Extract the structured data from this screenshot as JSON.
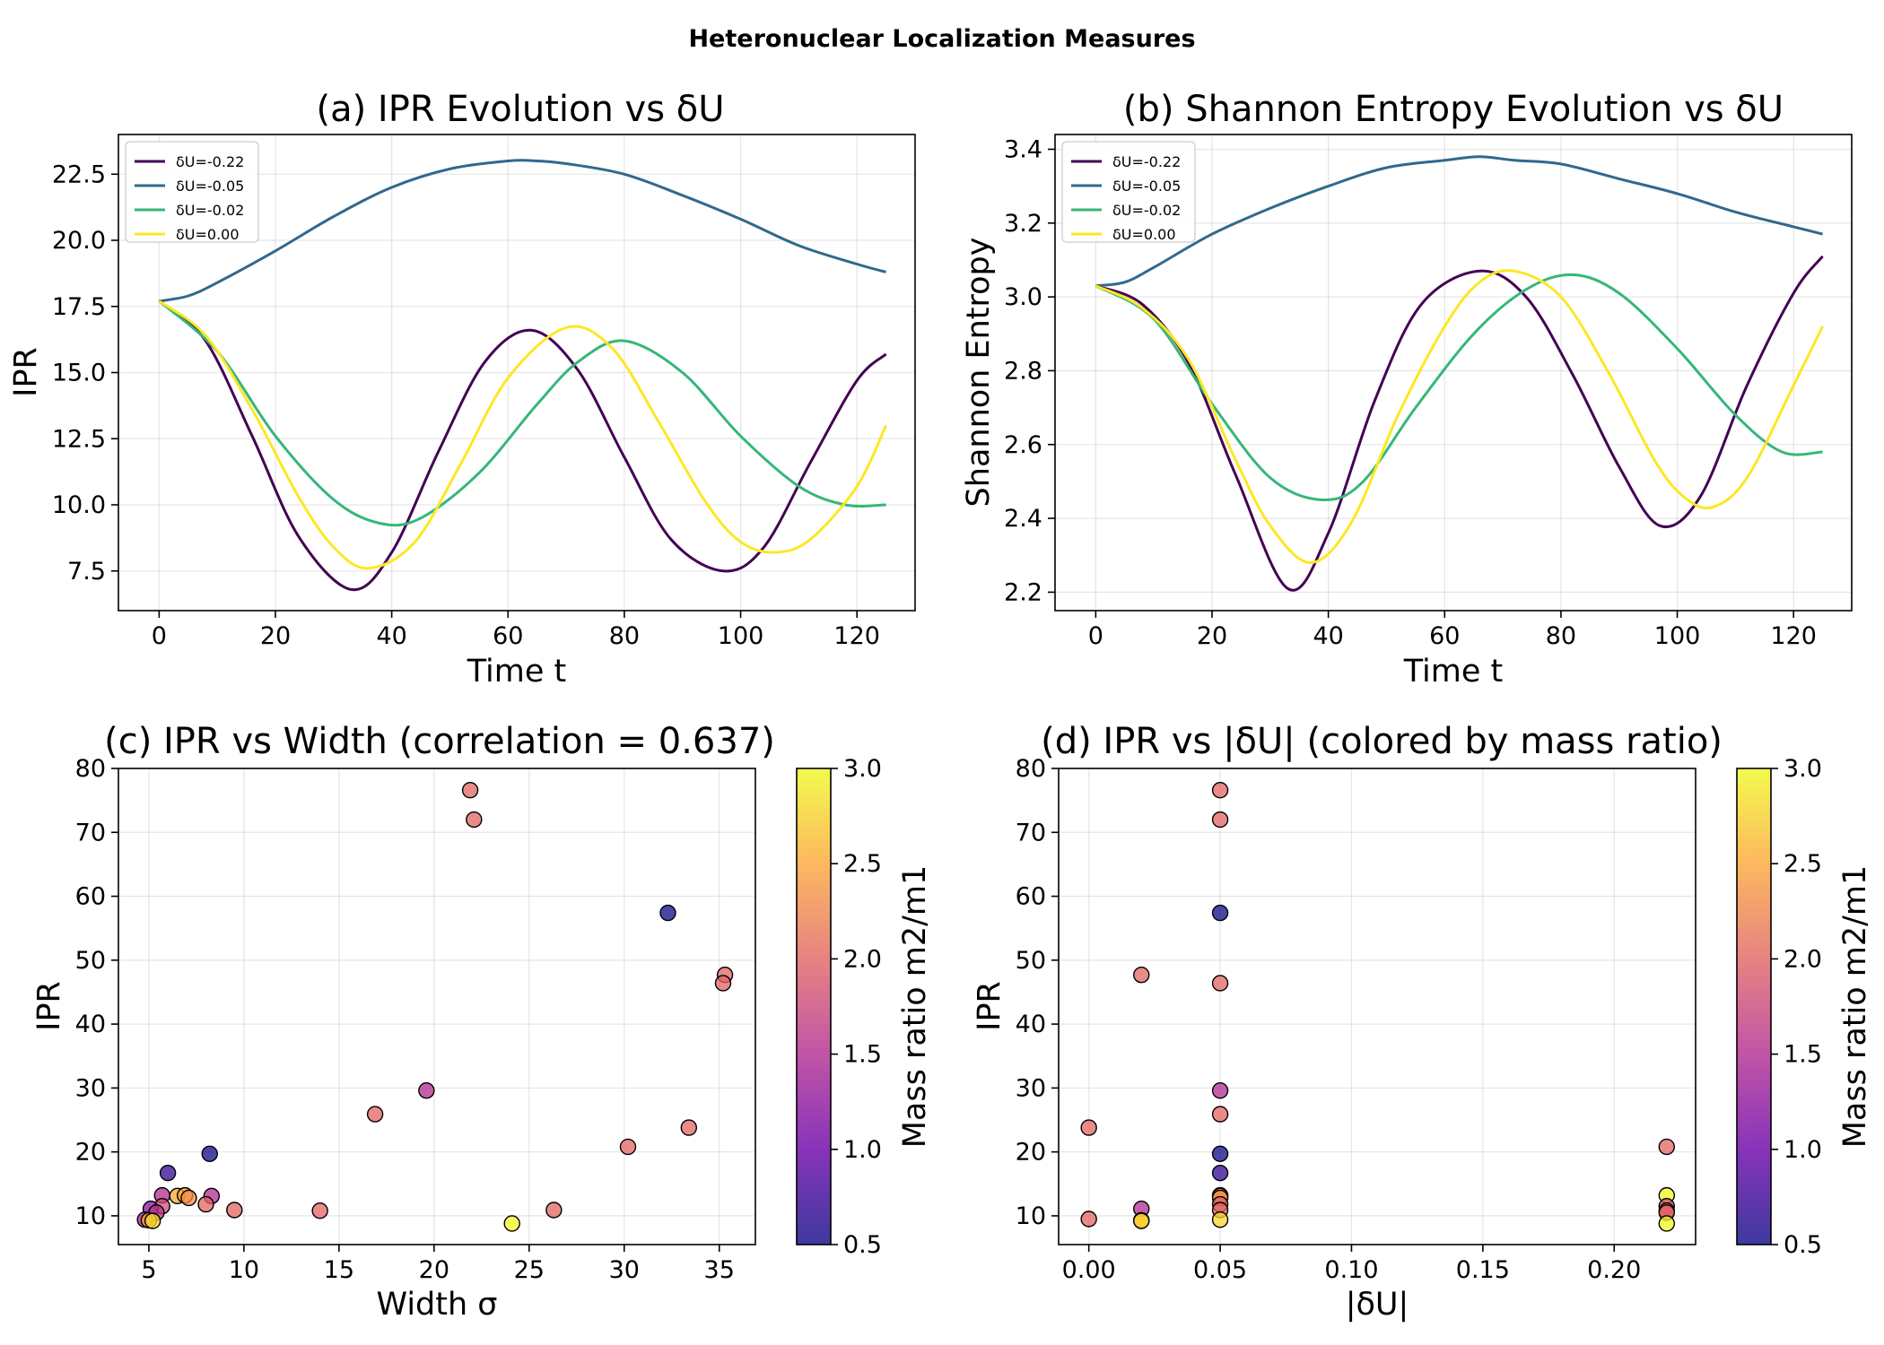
{
  "figure": {
    "suptitle": "Heteronuclear Localization Measures"
  },
  "colors": {
    "series": [
      "#440154",
      "#31688e",
      "#35b779",
      "#fde725"
    ],
    "colormap_stops": [
      "#0d0887",
      "#6a00a8",
      "#b12a90",
      "#e16462",
      "#fca636",
      "#f0f921"
    ]
  },
  "chart_data": [
    {
      "id": "a",
      "type": "line",
      "title": "(a) IPR Evolution vs δU",
      "xlabel": "Time t",
      "ylabel": "IPR",
      "xlim": [
        -7,
        130
      ],
      "ylim": [
        6,
        24
      ],
      "xticks": [
        0,
        20,
        40,
        60,
        80,
        100,
        120
      ],
      "xtick_labels": [
        "0",
        "20",
        "40",
        "60",
        "80",
        "100",
        "120"
      ],
      "yticks": [
        7.5,
        10,
        12.5,
        15,
        17.5,
        20,
        22.5
      ],
      "ytick_labels": [
        "7.5",
        "10.0",
        "12.5",
        "15.0",
        "17.5",
        "20.0",
        "22.5"
      ],
      "legend_location": "upper-left",
      "series": [
        {
          "name": "δU=-0.22",
          "x": [
            0,
            8,
            16,
            24,
            33,
            40,
            48,
            56,
            64,
            72,
            80,
            88,
            97,
            104,
            112,
            120,
            125
          ],
          "values": [
            17.7,
            16.2,
            12.6,
            8.8,
            6.8,
            8.2,
            12.0,
            15.4,
            16.6,
            15.1,
            11.8,
            8.7,
            7.5,
            8.4,
            11.6,
            14.7,
            15.7
          ]
        },
        {
          "name": "δU=-0.05",
          "x": [
            0,
            5,
            10,
            20,
            30,
            40,
            50,
            60,
            65,
            70,
            80,
            90,
            100,
            110,
            120,
            125
          ],
          "values": [
            17.7,
            17.9,
            18.4,
            19.6,
            20.9,
            22.0,
            22.7,
            23.0,
            23.0,
            22.9,
            22.5,
            21.7,
            20.8,
            19.8,
            19.1,
            18.8
          ]
        },
        {
          "name": "δU=-0.02",
          "x": [
            0,
            10,
            20,
            30,
            38,
            45,
            55,
            65,
            72,
            80,
            90,
            100,
            110,
            118,
            125
          ],
          "values": [
            17.7,
            15.8,
            12.6,
            10.2,
            9.3,
            9.5,
            11.2,
            13.8,
            15.4,
            16.2,
            15.0,
            12.6,
            10.7,
            10.0,
            10.0
          ]
        },
        {
          "name": "δU=0.00",
          "x": [
            0,
            8,
            16,
            24,
            30,
            36,
            44,
            52,
            60,
            70,
            78,
            86,
            94,
            100,
            106,
            112,
            120,
            125
          ],
          "values": [
            17.7,
            16.4,
            13.6,
            10.3,
            8.4,
            7.6,
            8.6,
            11.6,
            14.8,
            16.7,
            15.9,
            13.1,
            10.1,
            8.6,
            8.2,
            8.7,
            10.7,
            13.0
          ]
        }
      ]
    },
    {
      "id": "b",
      "type": "line",
      "title": "(b) Shannon Entropy Evolution vs δU",
      "xlabel": "Time t",
      "ylabel": "Shannon Entropy",
      "xlim": [
        -7,
        130
      ],
      "ylim": [
        2.15,
        3.44
      ],
      "xticks": [
        0,
        20,
        40,
        60,
        80,
        100,
        120
      ],
      "xtick_labels": [
        "0",
        "20",
        "40",
        "60",
        "80",
        "100",
        "120"
      ],
      "yticks": [
        2.2,
        2.4,
        2.6,
        2.8,
        3.0,
        3.2,
        3.4
      ],
      "ytick_labels": [
        "2.2",
        "2.4",
        "2.6",
        "2.8",
        "3.0",
        "3.2",
        "3.4"
      ],
      "legend_location": "upper-left",
      "series": [
        {
          "name": "δU=-0.22",
          "x": [
            0,
            8,
            16,
            24,
            33,
            40,
            48,
            56,
            66,
            74,
            82,
            90,
            97,
            104,
            112,
            120,
            125
          ],
          "values": [
            3.03,
            2.98,
            2.82,
            2.52,
            2.21,
            2.36,
            2.72,
            2.98,
            3.07,
            3.0,
            2.79,
            2.54,
            2.38,
            2.46,
            2.76,
            3.01,
            3.11
          ]
        },
        {
          "name": "δU=-0.05",
          "x": [
            0,
            5,
            10,
            20,
            30,
            40,
            50,
            60,
            66,
            72,
            80,
            90,
            100,
            110,
            120,
            125
          ],
          "values": [
            3.03,
            3.04,
            3.08,
            3.17,
            3.24,
            3.3,
            3.35,
            3.37,
            3.38,
            3.37,
            3.36,
            3.32,
            3.28,
            3.23,
            3.19,
            3.17
          ]
        },
        {
          "name": "δU=-0.02",
          "x": [
            0,
            10,
            20,
            30,
            39,
            46,
            55,
            65,
            74,
            82,
            90,
            100,
            110,
            118,
            125
          ],
          "values": [
            3.03,
            2.94,
            2.71,
            2.51,
            2.45,
            2.5,
            2.7,
            2.9,
            3.02,
            3.06,
            3.01,
            2.86,
            2.68,
            2.58,
            2.58
          ]
        },
        {
          "name": "δU=0.00",
          "x": [
            0,
            8,
            16,
            24,
            30,
            37,
            44,
            52,
            60,
            66,
            72,
            80,
            88,
            96,
            101,
            106,
            112,
            120,
            125
          ],
          "values": [
            3.03,
            2.97,
            2.83,
            2.56,
            2.38,
            2.28,
            2.39,
            2.68,
            2.92,
            3.04,
            3.07,
            3.0,
            2.8,
            2.56,
            2.46,
            2.43,
            2.51,
            2.76,
            2.92
          ]
        }
      ]
    },
    {
      "id": "c",
      "type": "scatter",
      "title": "(c) IPR vs Width (correlation = 0.637)",
      "xlabel": "Width σ",
      "ylabel": "IPR",
      "xlim": [
        3.4,
        36.9
      ],
      "ylim": [
        5.5,
        80
      ],
      "xticks": [
        5,
        10,
        15,
        20,
        25,
        30,
        35
      ],
      "xtick_labels": [
        "5",
        "10",
        "15",
        "20",
        "25",
        "30",
        "35"
      ],
      "yticks": [
        10,
        20,
        30,
        40,
        50,
        60,
        70,
        80
      ],
      "ytick_labels": [
        "10",
        "20",
        "30",
        "40",
        "50",
        "60",
        "70",
        "80"
      ],
      "colorbar": {
        "label": "Mass ratio m2/m1",
        "range": [
          0.5,
          3.0
        ],
        "ticks": [
          0.5,
          1.0,
          1.5,
          2.0,
          2.5,
          3.0
        ],
        "tick_labels": [
          "0.5",
          "1.0",
          "1.5",
          "2.0",
          "2.5",
          "3.0"
        ]
      },
      "points": [
        {
          "x": 21.9,
          "y": 76.6,
          "c": 2.0
        },
        {
          "x": 22.1,
          "y": 72.0,
          "c": 2.0
        },
        {
          "x": 32.3,
          "y": 57.4,
          "c": 0.5
        },
        {
          "x": 35.3,
          "y": 47.7,
          "c": 2.0
        },
        {
          "x": 35.2,
          "y": 46.4,
          "c": 2.0
        },
        {
          "x": 19.6,
          "y": 29.6,
          "c": 1.5
        },
        {
          "x": 16.9,
          "y": 25.9,
          "c": 2.0
        },
        {
          "x": 33.4,
          "y": 23.8,
          "c": 2.0
        },
        {
          "x": 30.2,
          "y": 20.8,
          "c": 2.0
        },
        {
          "x": 8.2,
          "y": 19.7,
          "c": 0.5
        },
        {
          "x": 6.0,
          "y": 16.7,
          "c": 0.7
        },
        {
          "x": 5.7,
          "y": 13.2,
          "c": 1.5
        },
        {
          "x": 6.5,
          "y": 13.1,
          "c": 2.5
        },
        {
          "x": 6.9,
          "y": 13.2,
          "c": 2.5
        },
        {
          "x": 7.1,
          "y": 12.8,
          "c": 2.3
        },
        {
          "x": 8.3,
          "y": 13.1,
          "c": 1.5
        },
        {
          "x": 8.0,
          "y": 11.8,
          "c": 2.0
        },
        {
          "x": 5.7,
          "y": 11.5,
          "c": 1.8
        },
        {
          "x": 5.1,
          "y": 11.1,
          "c": 1.2
        },
        {
          "x": 5.4,
          "y": 10.5,
          "c": 1.6
        },
        {
          "x": 9.5,
          "y": 10.9,
          "c": 2.0
        },
        {
          "x": 14.0,
          "y": 10.8,
          "c": 2.0
        },
        {
          "x": 26.3,
          "y": 10.9,
          "c": 2.0
        },
        {
          "x": 4.8,
          "y": 9.4,
          "c": 1.4
        },
        {
          "x": 5.0,
          "y": 9.3,
          "c": 2.5
        },
        {
          "x": 5.2,
          "y": 9.2,
          "c": 2.8
        },
        {
          "x": 24.1,
          "y": 8.8,
          "c": 3.0
        }
      ]
    },
    {
      "id": "d",
      "type": "scatter",
      "title": "(d) IPR vs |δU| (colored by mass ratio)",
      "xlabel": "|δU|",
      "ylabel": "IPR",
      "xlim": [
        -0.0115,
        0.231
      ],
      "ylim": [
        5.5,
        80
      ],
      "xticks": [
        0,
        0.05,
        0.1,
        0.15,
        0.2
      ],
      "xtick_labels": [
        "0.00",
        "0.05",
        "0.10",
        "0.15",
        "0.20"
      ],
      "yticks": [
        10,
        20,
        30,
        40,
        50,
        60,
        70,
        80
      ],
      "ytick_labels": [
        "10",
        "20",
        "30",
        "40",
        "50",
        "60",
        "70",
        "80"
      ],
      "colorbar": {
        "label": "Mass ratio m2/m1",
        "range": [
          0.5,
          3.0
        ],
        "ticks": [
          0.5,
          1.0,
          1.5,
          2.0,
          2.5,
          3.0
        ],
        "tick_labels": [
          "0.5",
          "1.0",
          "1.5",
          "2.0",
          "2.5",
          "3.0"
        ]
      },
      "points": [
        {
          "x": 0.0,
          "y": 23.8,
          "c": 2.0
        },
        {
          "x": 0.0,
          "y": 9.5,
          "c": 2.0
        },
        {
          "x": 0.02,
          "y": 47.7,
          "c": 2.0
        },
        {
          "x": 0.02,
          "y": 11.1,
          "c": 1.5
        },
        {
          "x": 0.02,
          "y": 9.3,
          "c": 2.5
        },
        {
          "x": 0.02,
          "y": 9.2,
          "c": 2.8
        },
        {
          "x": 0.05,
          "y": 76.6,
          "c": 2.0
        },
        {
          "x": 0.05,
          "y": 72.0,
          "c": 2.0
        },
        {
          "x": 0.05,
          "y": 57.4,
          "c": 0.5
        },
        {
          "x": 0.05,
          "y": 46.4,
          "c": 2.0
        },
        {
          "x": 0.05,
          "y": 29.6,
          "c": 1.5
        },
        {
          "x": 0.05,
          "y": 25.9,
          "c": 2.0
        },
        {
          "x": 0.05,
          "y": 19.7,
          "c": 0.5
        },
        {
          "x": 0.05,
          "y": 16.7,
          "c": 0.7
        },
        {
          "x": 0.05,
          "y": 13.2,
          "c": 1.5
        },
        {
          "x": 0.05,
          "y": 13.1,
          "c": 2.5
        },
        {
          "x": 0.05,
          "y": 12.8,
          "c": 2.3
        },
        {
          "x": 0.05,
          "y": 11.8,
          "c": 2.0
        },
        {
          "x": 0.05,
          "y": 10.9,
          "c": 2.0
        },
        {
          "x": 0.05,
          "y": 9.4,
          "c": 2.8
        },
        {
          "x": 0.22,
          "y": 20.8,
          "c": 2.0
        },
        {
          "x": 0.22,
          "y": 13.2,
          "c": 3.0
        },
        {
          "x": 0.22,
          "y": 11.5,
          "c": 1.8
        },
        {
          "x": 0.22,
          "y": 10.8,
          "c": 2.0
        },
        {
          "x": 0.22,
          "y": 10.5,
          "c": 2.0
        },
        {
          "x": 0.22,
          "y": 8.8,
          "c": 3.0
        }
      ]
    }
  ]
}
